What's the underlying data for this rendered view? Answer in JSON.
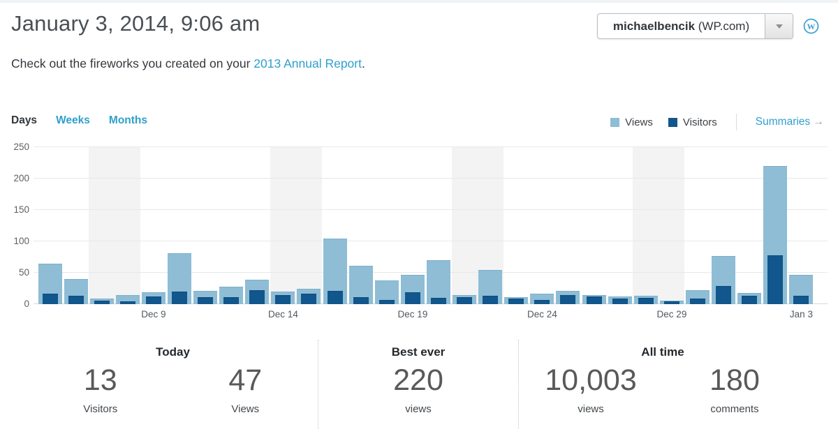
{
  "header": {
    "title": "January 3, 2014, 9:06 am",
    "site_selector": {
      "name": "michaelbencik",
      "suffix": " (WP.com)"
    },
    "subtitle_prefix": "Check out the fireworks you created on your ",
    "subtitle_link": "2013 Annual Report",
    "subtitle_suffix": "."
  },
  "toolbar": {
    "tabs": [
      {
        "label": "Days"
      },
      {
        "label": "Weeks"
      },
      {
        "label": "Months"
      }
    ],
    "legend": [
      {
        "label": "Views",
        "color": "#8ebdd5"
      },
      {
        "label": "Visitors",
        "color": "#11568c"
      }
    ],
    "summaries_label": "Summaries",
    "summaries_arrow": "→"
  },
  "chart_data": {
    "type": "bar",
    "title": "Daily views and visitors",
    "categories": [
      "Dec 5",
      "Dec 6",
      "Dec 7",
      "Dec 8",
      "Dec 9",
      "Dec 10",
      "Dec 11",
      "Dec 12",
      "Dec 13",
      "Dec 14",
      "Dec 15",
      "Dec 16",
      "Dec 17",
      "Dec 18",
      "Dec 19",
      "Dec 20",
      "Dec 21",
      "Dec 22",
      "Dec 23",
      "Dec 24",
      "Dec 25",
      "Dec 26",
      "Dec 27",
      "Dec 28",
      "Dec 29",
      "Dec 30",
      "Dec 31",
      "Jan 1",
      "Jan 2",
      "Jan 3"
    ],
    "series": [
      {
        "name": "Views",
        "color": "#8ebdd5",
        "values": [
          64,
          40,
          9,
          15,
          19,
          81,
          21,
          28,
          39,
          20,
          24,
          105,
          61,
          38,
          47,
          70,
          14,
          55,
          11,
          17,
          21,
          14,
          12,
          13,
          6,
          22,
          77,
          18,
          220,
          47
        ]
      },
      {
        "name": "Visitors",
        "color": "#11568c",
        "values": [
          17,
          13,
          6,
          5,
          12,
          20,
          11,
          11,
          22,
          14,
          17,
          21,
          11,
          7,
          19,
          10,
          11,
          13,
          9,
          7,
          14,
          12,
          9,
          10,
          5,
          9,
          29,
          13,
          78,
          13
        ]
      }
    ],
    "ylim": [
      0,
      250
    ],
    "yticks": [
      0,
      50,
      100,
      150,
      200,
      250
    ],
    "xtick_indices": [
      4,
      9,
      14,
      19,
      24,
      29
    ],
    "xtick_labels": [
      "Dec 9",
      "Dec 14",
      "Dec 19",
      "Dec 24",
      "Dec 29",
      "Jan 3"
    ],
    "weekend_band_indices": [
      2,
      3,
      9,
      10,
      16,
      17,
      23,
      24
    ],
    "grid": true,
    "legend_position": "top-right"
  },
  "summary": {
    "groups": [
      {
        "title": "Today",
        "stats": [
          {
            "value": "13",
            "label": "Visitors"
          },
          {
            "value": "47",
            "label": "Views"
          }
        ]
      },
      {
        "title": "Best ever",
        "stats": [
          {
            "value": "220",
            "label": "views"
          }
        ]
      },
      {
        "title": "All time",
        "stats": [
          {
            "value": "10,003",
            "label": "views"
          },
          {
            "value": "180",
            "label": "comments"
          }
        ]
      }
    ]
  }
}
